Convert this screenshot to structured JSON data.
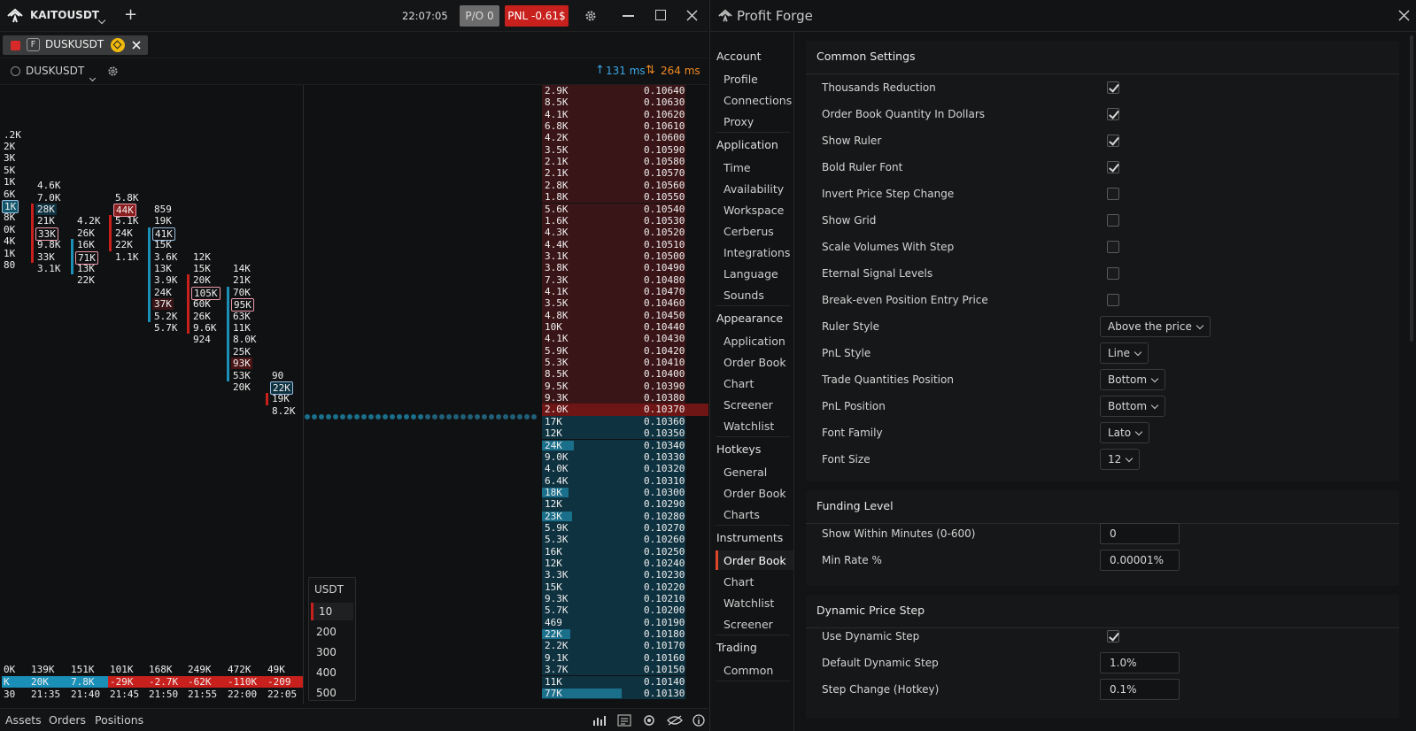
{
  "titlebar": {
    "symbol": "KAITOUSDT",
    "time": "22:07:05",
    "po_label": "P/O 0",
    "pnl_label": "PNL -0.61$"
  },
  "tab": {
    "badge": "F",
    "name": "DUSKUSDT"
  },
  "instrument": {
    "name": "DUSKUSDT",
    "latency_up": "131 ms",
    "latency_both": "264 ms"
  },
  "cluster_columns": [
    {
      "cells": [
        ".2K",
        "2K",
        "3K",
        "5K",
        "1K",
        "6K",
        "1K",
        "8K",
        "0K",
        "4K",
        "1K",
        "80"
      ]
    },
    {
      "cells": [
        "4.6K",
        "7.0K",
        "28K",
        "21K",
        "33K",
        "9.8K",
        "33K",
        "3.1K"
      ]
    },
    {
      "cells": [
        "4.2K",
        "26K",
        "16K",
        "71K",
        "13K",
        "22K"
      ]
    },
    {
      "cells": [
        "5.8K",
        "44K",
        "5.1K",
        "24K",
        "22K",
        "1.1K"
      ]
    },
    {
      "cells": [
        "859",
        "19K",
        "41K",
        "15K",
        "3.6K",
        "13K",
        "3.9K",
        "24K",
        "37K",
        "5.2K",
        "5.7K"
      ]
    },
    {
      "cells": [
        "12K",
        "15K",
        "20K",
        "105K",
        "60K",
        "26K",
        "9.6K",
        "924"
      ]
    },
    {
      "cells": [
        "14K",
        "21K",
        "70K",
        "95K",
        "63K",
        "11K",
        "8.0K",
        "25K",
        "93K",
        "53K",
        "20K"
      ]
    },
    {
      "cells": [
        "90",
        "22K",
        "19K",
        "8.2K"
      ]
    }
  ],
  "totals": {
    "volumes": [
      "0K",
      "139K",
      "151K",
      "101K",
      "168K",
      "249K",
      "472K",
      "49K"
    ],
    "deltas": [
      "K",
      "20K",
      "7.8K",
      "-29K",
      "-2.7K",
      "-62K",
      "-110K",
      "-209"
    ],
    "times": [
      "30",
      "21:35",
      "21:40",
      "21:45",
      "21:50",
      "21:55",
      "22:00",
      "22:05"
    ]
  },
  "quantity_panel": {
    "currency": "USDT",
    "options": [
      "10",
      "200",
      "300",
      "400",
      "500"
    ],
    "selected": "10"
  },
  "order_book": {
    "asks": [
      {
        "q": "2.9K",
        "p": "0.10640"
      },
      {
        "q": "8.5K",
        "p": "0.10630"
      },
      {
        "q": "4.1K",
        "p": "0.10620"
      },
      {
        "q": "6.8K",
        "p": "0.10610"
      },
      {
        "q": "4.2K",
        "p": "0.10600"
      },
      {
        "q": "3.5K",
        "p": "0.10590"
      },
      {
        "q": "2.1K",
        "p": "0.10580"
      },
      {
        "q": "2.1K",
        "p": "0.10570"
      },
      {
        "q": "2.8K",
        "p": "0.10560"
      },
      {
        "q": "1.8K",
        "p": "0.10550"
      },
      {
        "q": "5.6K",
        "p": "0.10540"
      },
      {
        "q": "1.6K",
        "p": "0.10530"
      },
      {
        "q": "4.3K",
        "p": "0.10520"
      },
      {
        "q": "4.4K",
        "p": "0.10510"
      },
      {
        "q": "3.1K",
        "p": "0.10500"
      },
      {
        "q": "3.8K",
        "p": "0.10490"
      },
      {
        "q": "7.3K",
        "p": "0.10480"
      },
      {
        "q": "4.1K",
        "p": "0.10470"
      },
      {
        "q": "3.5K",
        "p": "0.10460"
      },
      {
        "q": "4.8K",
        "p": "0.10450"
      },
      {
        "q": "10K",
        "p": "0.10440"
      },
      {
        "q": "4.1K",
        "p": "0.10430"
      },
      {
        "q": "5.9K",
        "p": "0.10420"
      },
      {
        "q": "5.3K",
        "p": "0.10410"
      },
      {
        "q": "8.5K",
        "p": "0.10400"
      },
      {
        "q": "9.5K",
        "p": "0.10390"
      },
      {
        "q": "9.3K",
        "p": "0.10380"
      },
      {
        "q": "2.0K",
        "p": "0.10370"
      }
    ],
    "bids": [
      {
        "q": "17K",
        "p": "0.10360"
      },
      {
        "q": "12K",
        "p": "0.10350"
      },
      {
        "q": "24K",
        "p": "0.10340"
      },
      {
        "q": "9.0K",
        "p": "0.10330"
      },
      {
        "q": "4.0K",
        "p": "0.10320"
      },
      {
        "q": "6.4K",
        "p": "0.10310"
      },
      {
        "q": "18K",
        "p": "0.10300"
      },
      {
        "q": "12K",
        "p": "0.10290"
      },
      {
        "q": "23K",
        "p": "0.10280"
      },
      {
        "q": "5.9K",
        "p": "0.10270"
      },
      {
        "q": "5.3K",
        "p": "0.10260"
      },
      {
        "q": "16K",
        "p": "0.10250"
      },
      {
        "q": "12K",
        "p": "0.10240"
      },
      {
        "q": "3.3K",
        "p": "0.10230"
      },
      {
        "q": "15K",
        "p": "0.10220"
      },
      {
        "q": "9.3K",
        "p": "0.10210"
      },
      {
        "q": "5.7K",
        "p": "0.10200"
      },
      {
        "q": "469",
        "p": "0.10190"
      },
      {
        "q": "22K",
        "p": "0.10180"
      },
      {
        "q": "2.2K",
        "p": "0.10170"
      },
      {
        "q": "9.1K",
        "p": "0.10160"
      },
      {
        "q": "3.7K",
        "p": "0.10150"
      },
      {
        "q": "11K",
        "p": "0.10140"
      },
      {
        "q": "77K",
        "p": "0.10130"
      }
    ]
  },
  "bottom_tabs": [
    "Assets",
    "Orders",
    "Positions"
  ],
  "settings": {
    "title": "Profit Forge",
    "nav": [
      {
        "h": "Account",
        "items": [
          "Profile",
          "Connections",
          "Proxy"
        ]
      },
      {
        "h": "Application",
        "items": [
          "Time",
          "Availability",
          "Workspace",
          "Cerberus",
          "Integrations",
          "Language",
          "Sounds"
        ]
      },
      {
        "h": "Appearance",
        "items": [
          "Application",
          "Order Book",
          "Chart",
          "Screener",
          "Watchlist"
        ]
      },
      {
        "h": "Hotkeys",
        "items": [
          "General",
          "Order Book",
          "Charts"
        ]
      },
      {
        "h": "Instruments",
        "items": [
          "Order Book",
          "Chart",
          "Watchlist",
          "Screener"
        ]
      },
      {
        "h": "Trading",
        "items": [
          "Common"
        ]
      }
    ],
    "common": {
      "title": "Common Settings",
      "checks": [
        {
          "label": "Thousands Reduction",
          "on": true
        },
        {
          "label": "Order Book Quantity In Dollars",
          "on": true
        },
        {
          "label": "Show Ruler",
          "on": true
        },
        {
          "label": "Bold Ruler Font",
          "on": true
        },
        {
          "label": "Invert Price Step Change",
          "on": false
        },
        {
          "label": "Show Grid",
          "on": false
        },
        {
          "label": "Scale Volumes With Step",
          "on": false
        },
        {
          "label": "Eternal Signal Levels",
          "on": false
        },
        {
          "label": "Break-even Position Entry Price",
          "on": false
        }
      ],
      "dropdowns": [
        {
          "label": "Ruler Style",
          "value": "Above the price"
        },
        {
          "label": "PnL Style",
          "value": "Line"
        },
        {
          "label": "Trade Quantities Position",
          "value": "Bottom"
        },
        {
          "label": "PnL Position",
          "value": "Bottom"
        },
        {
          "label": "Font Family",
          "value": "Lato"
        },
        {
          "label": "Font Size",
          "value": "12"
        }
      ]
    },
    "funding": {
      "title": "Funding Level",
      "rows": [
        {
          "label": "Show Within Minutes (0-600)",
          "value": "0"
        },
        {
          "label": "Min Rate %",
          "value": "0.00001%"
        }
      ]
    },
    "dynamic": {
      "title": "Dynamic Price Step",
      "use_label": "Use Dynamic Step",
      "use_on": true,
      "rows": [
        {
          "label": "Default Dynamic Step",
          "value": "1.0%"
        },
        {
          "label": "Step Change (Hotkey)",
          "value": "0.1%"
        }
      ]
    }
  },
  "colors": {
    "ask": "#3a1517",
    "bid": "#0f3240",
    "accent_red": "#c8201c",
    "accent_orange": "#f08a24",
    "accent_blue": "#3aa7e6"
  }
}
